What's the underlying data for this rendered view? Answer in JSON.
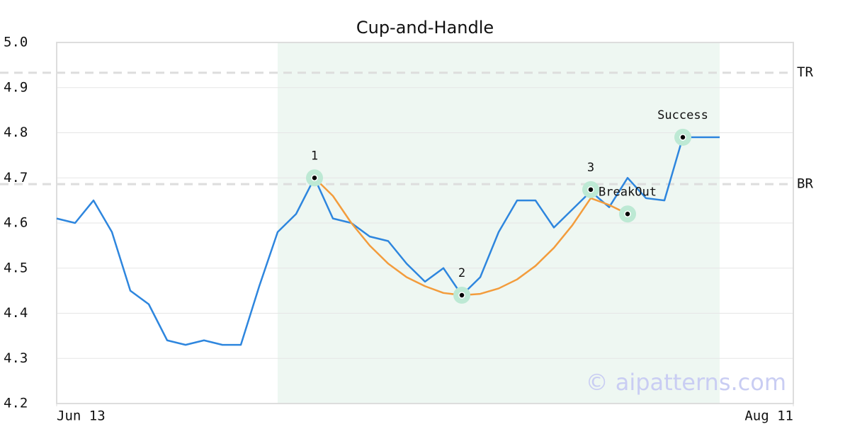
{
  "chart_data": {
    "type": "line",
    "title": "Cup-and-Handle",
    "xlim": [
      0,
      40
    ],
    "xticks": [
      {
        "value": 0,
        "label": "Jun 13"
      },
      {
        "value": 40,
        "label": "Aug 11"
      }
    ],
    "ylim": [
      4.2,
      5.0
    ],
    "yticks": [
      4.2,
      4.3,
      4.4,
      4.5,
      4.6,
      4.7,
      4.8,
      4.9,
      {
        "value": 5.0,
        "label": "5.0"
      }
    ],
    "grid": true,
    "highlight_range": [
      12,
      36
    ],
    "series": [
      {
        "color": "#2e86de",
        "values": [
          4.61,
          4.6,
          4.65,
          4.58,
          4.45,
          4.42,
          4.34,
          4.33,
          4.34,
          4.33,
          4.33,
          4.46,
          4.58,
          4.62,
          4.7,
          4.61,
          4.6,
          4.57,
          4.56,
          4.51,
          4.47,
          4.5,
          4.44,
          4.48,
          4.58,
          4.65,
          4.65,
          4.59,
          4.63,
          4.67,
          4.635,
          4.7,
          4.655,
          4.65,
          4.79,
          4.79,
          4.79
        ]
      },
      {
        "color": "#f39c3c",
        "values": [
          null,
          null,
          null,
          null,
          null,
          null,
          null,
          null,
          null,
          null,
          null,
          null,
          null,
          null,
          4.7,
          4.66,
          4.6,
          4.55,
          4.51,
          4.48,
          4.46,
          4.445,
          4.44,
          4.443,
          4.455,
          4.475,
          4.505,
          4.545,
          4.595,
          4.655,
          4.64,
          4.62,
          null,
          null,
          null,
          null,
          null
        ]
      }
    ],
    "levels": [
      {
        "label": "TR",
        "value": 4.933
      },
      {
        "label": "BR",
        "value": 4.686
      }
    ],
    "annotations": [
      {
        "label": "1",
        "x": 14,
        "y": 4.7
      },
      {
        "label": "2",
        "x": 22,
        "y": 4.44
      },
      {
        "label": "3",
        "x": 29,
        "y": 4.674
      },
      {
        "label": "BreakOut",
        "x": 31,
        "y": 4.62
      },
      {
        "label": "Success",
        "x": 34,
        "y": 4.79
      }
    ],
    "watermark": "© aipatterns.com"
  }
}
